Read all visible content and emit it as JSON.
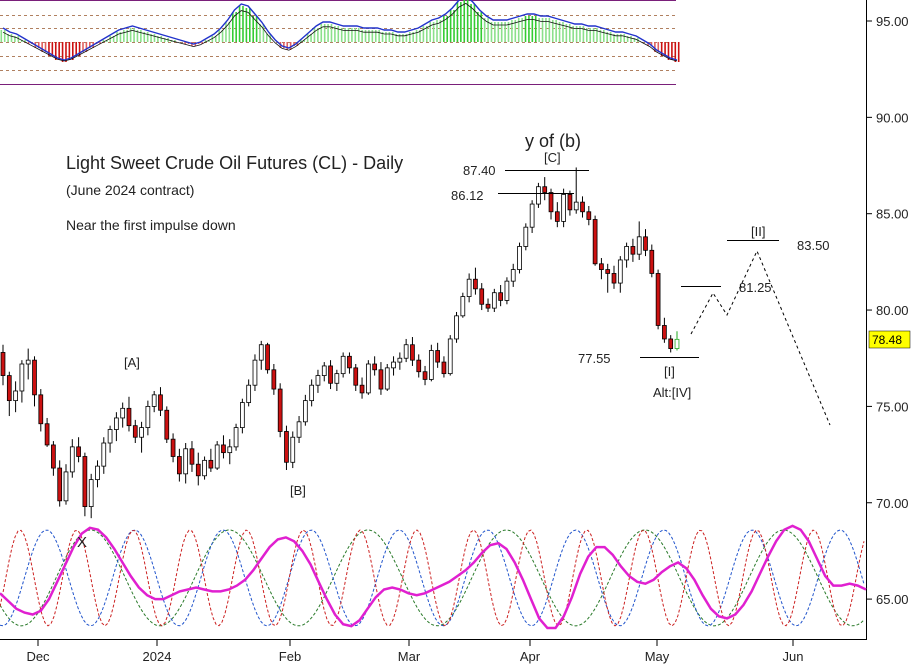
{
  "chart_data": {
    "type": "candlestick",
    "title": "Light Sweet Crude Oil Futures (CL) - Daily",
    "subtitle": "(June 2024 contract)",
    "note": "Near the first impulse down",
    "x_labels": [
      "Dec",
      "2024",
      "Feb",
      "Mar",
      "Apr",
      "May",
      "Jun"
    ],
    "y_ticks": [
      "95.00",
      "90.00",
      "85.00",
      "80.00",
      "75.00",
      "70.00",
      "65.00"
    ],
    "ylim": [
      62.5,
      97.3
    ],
    "last_price": "78.48",
    "up_color": "#ffffff",
    "down_color": "#cc1111",
    "candles": [
      [
        77.8,
        78.2,
        76.1,
        76.6
      ],
      [
        76.6,
        76.8,
        74.5,
        75.3
      ],
      [
        75.3,
        76.3,
        74.7,
        75.8
      ],
      [
        75.8,
        77.4,
        75.2,
        77.2
      ],
      [
        77.2,
        78.0,
        76.4,
        77.4
      ],
      [
        77.4,
        77.6,
        75.0,
        75.6
      ],
      [
        75.6,
        75.9,
        73.7,
        74.1
      ],
      [
        74.1,
        74.4,
        72.9,
        73.0
      ],
      [
        73.0,
        73.2,
        71.4,
        71.8
      ],
      [
        71.8,
        72.2,
        69.8,
        70.1
      ],
      [
        70.1,
        72.0,
        69.9,
        71.6
      ],
      [
        71.6,
        73.3,
        71.3,
        72.9
      ],
      [
        72.9,
        73.4,
        72.1,
        72.4
      ],
      [
        72.4,
        72.6,
        69.3,
        69.8
      ],
      [
        69.8,
        71.5,
        69.2,
        71.2
      ],
      [
        71.2,
        72.2,
        70.8,
        71.9
      ],
      [
        71.9,
        73.4,
        71.5,
        73.1
      ],
      [
        73.1,
        74.0,
        72.6,
        73.8
      ],
      [
        73.8,
        74.7,
        73.2,
        74.4
      ],
      [
        74.4,
        75.2,
        73.9,
        74.9
      ],
      [
        74.9,
        75.5,
        73.7,
        74.0
      ],
      [
        74.0,
        74.3,
        73.1,
        73.4
      ],
      [
        73.4,
        74.2,
        72.6,
        73.9
      ],
      [
        73.9,
        75.3,
        73.5,
        75.0
      ],
      [
        75.0,
        75.8,
        74.7,
        75.6
      ],
      [
        75.6,
        76.0,
        74.5,
        74.8
      ],
      [
        74.8,
        75.0,
        73.1,
        73.3
      ],
      [
        73.3,
        73.6,
        72.1,
        72.4
      ],
      [
        72.4,
        72.8,
        71.1,
        71.5
      ],
      [
        71.5,
        73.1,
        71.0,
        72.8
      ],
      [
        72.8,
        73.2,
        71.6,
        72.0
      ],
      [
        72.0,
        72.6,
        70.9,
        71.4
      ],
      [
        71.4,
        72.4,
        71.2,
        72.2
      ],
      [
        72.2,
        72.8,
        71.6,
        71.8
      ],
      [
        71.8,
        73.2,
        71.7,
        73.0
      ],
      [
        73.0,
        73.5,
        72.3,
        72.6
      ],
      [
        72.6,
        73.3,
        72.0,
        72.9
      ],
      [
        72.9,
        74.1,
        72.7,
        73.9
      ],
      [
        73.9,
        75.4,
        73.6,
        75.2
      ],
      [
        75.2,
        76.4,
        75.0,
        76.1
      ],
      [
        76.1,
        77.7,
        75.8,
        77.4
      ],
      [
        77.4,
        78.4,
        76.9,
        78.2
      ],
      [
        78.2,
        78.3,
        76.7,
        76.9
      ],
      [
        76.9,
        77.2,
        75.6,
        75.9
      ],
      [
        75.9,
        76.2,
        73.4,
        73.7
      ],
      [
        73.7,
        74.0,
        71.7,
        72.1
      ],
      [
        72.1,
        73.7,
        71.8,
        73.4
      ],
      [
        73.4,
        74.5,
        73.1,
        74.2
      ],
      [
        74.2,
        75.6,
        74.0,
        75.3
      ],
      [
        75.3,
        76.4,
        75.0,
        76.1
      ],
      [
        76.1,
        76.9,
        75.7,
        76.6
      ],
      [
        76.6,
        77.3,
        76.3,
        77.1
      ],
      [
        77.1,
        77.4,
        75.9,
        76.2
      ],
      [
        76.2,
        76.9,
        75.8,
        76.7
      ],
      [
        76.7,
        77.8,
        76.5,
        77.6
      ],
      [
        77.6,
        77.8,
        76.7,
        77.0
      ],
      [
        77.0,
        77.2,
        75.8,
        76.1
      ],
      [
        76.1,
        76.5,
        75.4,
        75.7
      ],
      [
        75.7,
        77.4,
        75.6,
        77.2
      ],
      [
        77.2,
        77.6,
        76.6,
        76.9
      ],
      [
        76.9,
        77.3,
        75.6,
        75.9
      ],
      [
        75.9,
        77.2,
        75.8,
        77.0
      ],
      [
        77.0,
        77.6,
        76.6,
        77.3
      ],
      [
        77.3,
        77.8,
        76.9,
        77.5
      ],
      [
        77.5,
        78.5,
        77.3,
        78.2
      ],
      [
        78.2,
        78.6,
        77.1,
        77.4
      ],
      [
        77.4,
        77.7,
        76.5,
        76.8
      ],
      [
        76.8,
        77.1,
        76.1,
        76.4
      ],
      [
        76.4,
        78.2,
        76.3,
        77.9
      ],
      [
        77.9,
        78.3,
        77.0,
        77.3
      ],
      [
        77.3,
        77.6,
        76.5,
        76.7
      ],
      [
        76.7,
        78.7,
        76.6,
        78.5
      ],
      [
        78.5,
        79.9,
        78.3,
        79.7
      ],
      [
        79.7,
        80.9,
        79.6,
        80.7
      ],
      [
        80.7,
        81.9,
        80.4,
        81.6
      ],
      [
        81.6,
        82.2,
        80.8,
        81.1
      ],
      [
        81.1,
        81.4,
        80.0,
        80.3
      ],
      [
        80.3,
        80.6,
        79.9,
        80.1
      ],
      [
        80.1,
        81.1,
        79.9,
        80.9
      ],
      [
        80.9,
        81.3,
        80.2,
        80.5
      ],
      [
        80.5,
        81.7,
        80.3,
        81.5
      ],
      [
        81.5,
        82.4,
        81.2,
        82.1
      ],
      [
        82.1,
        83.5,
        81.9,
        83.3
      ],
      [
        83.3,
        84.5,
        83.1,
        84.3
      ],
      [
        84.3,
        85.7,
        84.0,
        85.5
      ],
      [
        85.5,
        86.6,
        85.3,
        86.4
      ],
      [
        86.4,
        86.9,
        85.7,
        86.1
      ],
      [
        86.1,
        86.3,
        84.7,
        85.1
      ],
      [
        85.1,
        85.6,
        84.3,
        84.6
      ],
      [
        84.6,
        86.3,
        84.3,
        86.0
      ],
      [
        86.0,
        86.2,
        84.9,
        85.2
      ],
      [
        85.2,
        87.4,
        85.0,
        85.6
      ],
      [
        85.6,
        85.9,
        84.8,
        85.1
      ],
      [
        85.1,
        85.4,
        84.4,
        84.7
      ],
      [
        84.7,
        84.9,
        82.3,
        82.4
      ],
      [
        82.4,
        82.7,
        81.6,
        82.1
      ],
      [
        82.1,
        82.4,
        80.9,
        81.9
      ],
      [
        81.9,
        82.3,
        81.1,
        81.4
      ],
      [
        81.4,
        82.8,
        80.9,
        82.6
      ],
      [
        82.6,
        83.5,
        82.2,
        83.3
      ],
      [
        83.3,
        83.7,
        82.5,
        82.9
      ],
      [
        82.9,
        84.6,
        82.6,
        83.8
      ],
      [
        83.8,
        84.2,
        82.8,
        83.1
      ],
      [
        83.1,
        83.4,
        81.7,
        81.9
      ],
      [
        81.9,
        82.1,
        79.0,
        79.2
      ],
      [
        79.2,
        79.6,
        78.3,
        78.5
      ],
      [
        78.5,
        78.7,
        77.8,
        78.0
      ],
      [
        78.0,
        78.9,
        77.9,
        78.48
      ]
    ],
    "cycle_indicator": {
      "ylim": [
        63.3,
        68.9
      ],
      "pink": [
        65.3,
        64.9,
        64.5,
        64.3,
        64.2,
        64.4,
        65.0,
        65.9,
        66.8,
        67.7,
        68.4,
        68.7,
        68.6,
        68.2,
        67.6,
        66.9,
        66.2,
        65.6,
        65.2,
        65.0,
        65.0,
        65.2,
        65.4,
        65.5,
        65.6,
        65.5,
        65.4,
        65.4,
        65.5,
        65.7,
        66.0,
        66.5,
        67.1,
        67.7,
        68.1,
        68.2,
        68.0,
        67.5,
        66.8,
        65.9,
        65.0,
        64.2,
        63.7,
        63.6,
        63.9,
        64.5,
        65.1,
        65.5,
        65.6,
        65.5,
        65.3,
        65.2,
        65.3,
        65.5,
        65.7,
        65.9,
        66.2,
        66.5,
        66.9,
        67.4,
        67.8,
        67.9,
        67.6,
        66.9,
        66.0,
        65.0,
        64.0,
        63.5,
        63.5,
        64.1,
        65.1,
        66.3,
        67.2,
        67.7,
        67.7,
        67.3,
        66.7,
        66.2,
        65.9,
        65.8,
        66.0,
        66.4,
        66.7,
        66.9,
        66.6,
        66.0,
        65.2,
        64.5,
        64.1,
        64.0,
        64.2,
        64.7,
        65.4,
        66.3,
        67.2,
        68.0,
        68.6,
        68.8,
        68.6,
        68.0,
        67.1,
        66.2,
        65.7,
        65.7,
        65.8,
        65.7,
        65.5
      ],
      "red_period": 9,
      "blue_period": 14,
      "green_period": 22
    },
    "histogram_indicator": {
      "values": [
        0.6,
        0.4,
        0.3,
        0.1,
        -0.1,
        -0.3,
        -0.5,
        -0.7,
        -0.9,
        -1.0,
        -0.9,
        -0.7,
        -0.5,
        -0.3,
        -0.1,
        0.1,
        0.3,
        0.5,
        0.6,
        0.7,
        0.6,
        0.5,
        0.4,
        0.3,
        0.2,
        0.1,
        0.0,
        -0.1,
        -0.2,
        -0.1,
        0.1,
        0.3,
        0.6,
        1.0,
        1.5,
        1.8,
        1.7,
        1.3,
        0.9,
        0.4,
        0.0,
        -0.3,
        -0.4,
        -0.2,
        0.1,
        0.4,
        0.7,
        0.9,
        0.9,
        0.8,
        0.7,
        0.7,
        0.7,
        0.6,
        0.6,
        0.6,
        0.5,
        0.5,
        0.4,
        0.4,
        0.5,
        0.6,
        0.8,
        1.0,
        1.1,
        1.3,
        1.6,
        2.0,
        2.2,
        1.9,
        1.5,
        1.2,
        1.0,
        1.0,
        1.0,
        1.1,
        1.2,
        1.3,
        1.3,
        1.2,
        1.2,
        1.1,
        1.0,
        0.9,
        0.8,
        0.8,
        0.7,
        0.7,
        0.6,
        0.5,
        0.4,
        0.4,
        0.3,
        0.2,
        0.0,
        -0.2,
        -0.5,
        -0.7,
        -0.9,
        -1.0
      ]
    },
    "annotations": {
      "wave_y_of_b": "y of (b)",
      "wave_C": "[C]",
      "level_87_40": "87.40",
      "level_86_12": "86.12",
      "wave_A": "[A]",
      "wave_B": "[B]",
      "wave_X": "X",
      "level_77_55": "77.55",
      "wave_I": "[I]",
      "alt_IV": "Alt:[IV]",
      "wave_II": "[II]",
      "level_83_50": "83.50",
      "level_81_25": "81.25"
    }
  }
}
